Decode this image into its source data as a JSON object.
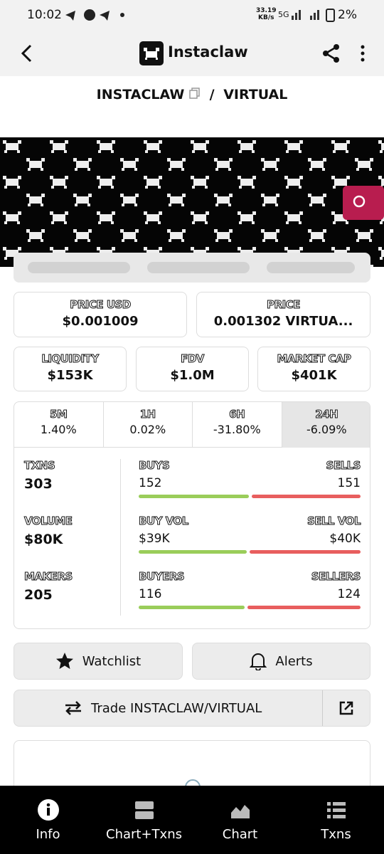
{
  "status_bar": {
    "time": "10:02",
    "speed": "33.19",
    "speed_unit": "KB/s",
    "network": "5G",
    "battery": "2%"
  },
  "header": {
    "title": "Instaclaw"
  },
  "pair": {
    "base": "INSTACLAW",
    "separator": "/",
    "quote": "VIRTUAL"
  },
  "price_cards": [
    {
      "label": "PRICE USD",
      "value": "$0.001009"
    },
    {
      "label": "PRICE",
      "value": "0.001302 VIRTUA..."
    }
  ],
  "stat_cards": [
    {
      "label": "LIQUIDITY",
      "value": "$153K"
    },
    {
      "label": "FDV",
      "value": "$1.0M"
    },
    {
      "label": "MARKET CAP",
      "value": "$401K"
    }
  ],
  "timeframes": [
    {
      "label": "5M",
      "change": "1.40%"
    },
    {
      "label": "1H",
      "change": "0.02%"
    },
    {
      "label": "6H",
      "change": "-31.80%"
    },
    {
      "label": "24H",
      "change": "-6.09%"
    }
  ],
  "stats": [
    {
      "label": "TXNS",
      "value": "303",
      "buy_label": "BUYS",
      "buy_value": "152",
      "sell_label": "SELLS",
      "sell_value": "151"
    },
    {
      "label": "VOLUME",
      "value": "$80K",
      "buy_label": "BUY VOL",
      "buy_value": "$39K",
      "sell_label": "SELL VOL",
      "sell_value": "$40K"
    },
    {
      "label": "MAKERS",
      "value": "205",
      "buy_label": "BUYERS",
      "buy_value": "116",
      "sell_label": "SELLERS",
      "sell_value": "124"
    }
  ],
  "buttons": {
    "watchlist": "Watchlist",
    "alerts": "Alerts",
    "trade": "Trade INSTACLAW/VIRTUAL"
  },
  "nav": [
    "Info",
    "Chart+Txns",
    "Chart",
    "Txns"
  ]
}
